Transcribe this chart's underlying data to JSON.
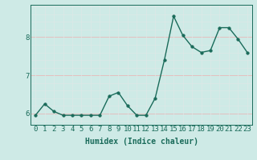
{
  "x": [
    0,
    1,
    2,
    3,
    4,
    5,
    6,
    7,
    8,
    9,
    10,
    11,
    12,
    13,
    14,
    15,
    16,
    17,
    18,
    19,
    20,
    21,
    22,
    23
  ],
  "y": [
    5.95,
    6.25,
    6.05,
    5.95,
    5.95,
    5.95,
    5.95,
    5.95,
    6.45,
    6.55,
    6.2,
    5.95,
    5.95,
    6.4,
    7.4,
    8.55,
    8.05,
    7.75,
    7.6,
    7.65,
    8.25,
    8.25,
    7.95,
    7.6
  ],
  "line_color": "#1a6b5a",
  "marker_color": "#1a6b5a",
  "bg_color": "#ceeae6",
  "xlabel": "Humidex (Indice chaleur)",
  "ylim": [
    5.7,
    8.85
  ],
  "xlim": [
    -0.5,
    23.5
  ],
  "yticks": [
    6,
    7,
    8
  ],
  "xticks": [
    0,
    1,
    2,
    3,
    4,
    5,
    6,
    7,
    8,
    9,
    10,
    11,
    12,
    13,
    14,
    15,
    16,
    17,
    18,
    19,
    20,
    21,
    22,
    23
  ],
  "xlabel_fontsize": 7,
  "tick_fontsize": 6.5,
  "linewidth": 1.0,
  "markersize": 2.5,
  "hgrid_minor": [
    5.8,
    6.0,
    6.2,
    6.4,
    6.6,
    6.8,
    7.0,
    7.2,
    7.4,
    7.6,
    7.8,
    8.0,
    8.2,
    8.4,
    8.6,
    8.8
  ],
  "hgrid_major_color": "#e8b8b8",
  "hgrid_minor_color": "#dde8e6",
  "vgrid_color": "#dde8e6"
}
